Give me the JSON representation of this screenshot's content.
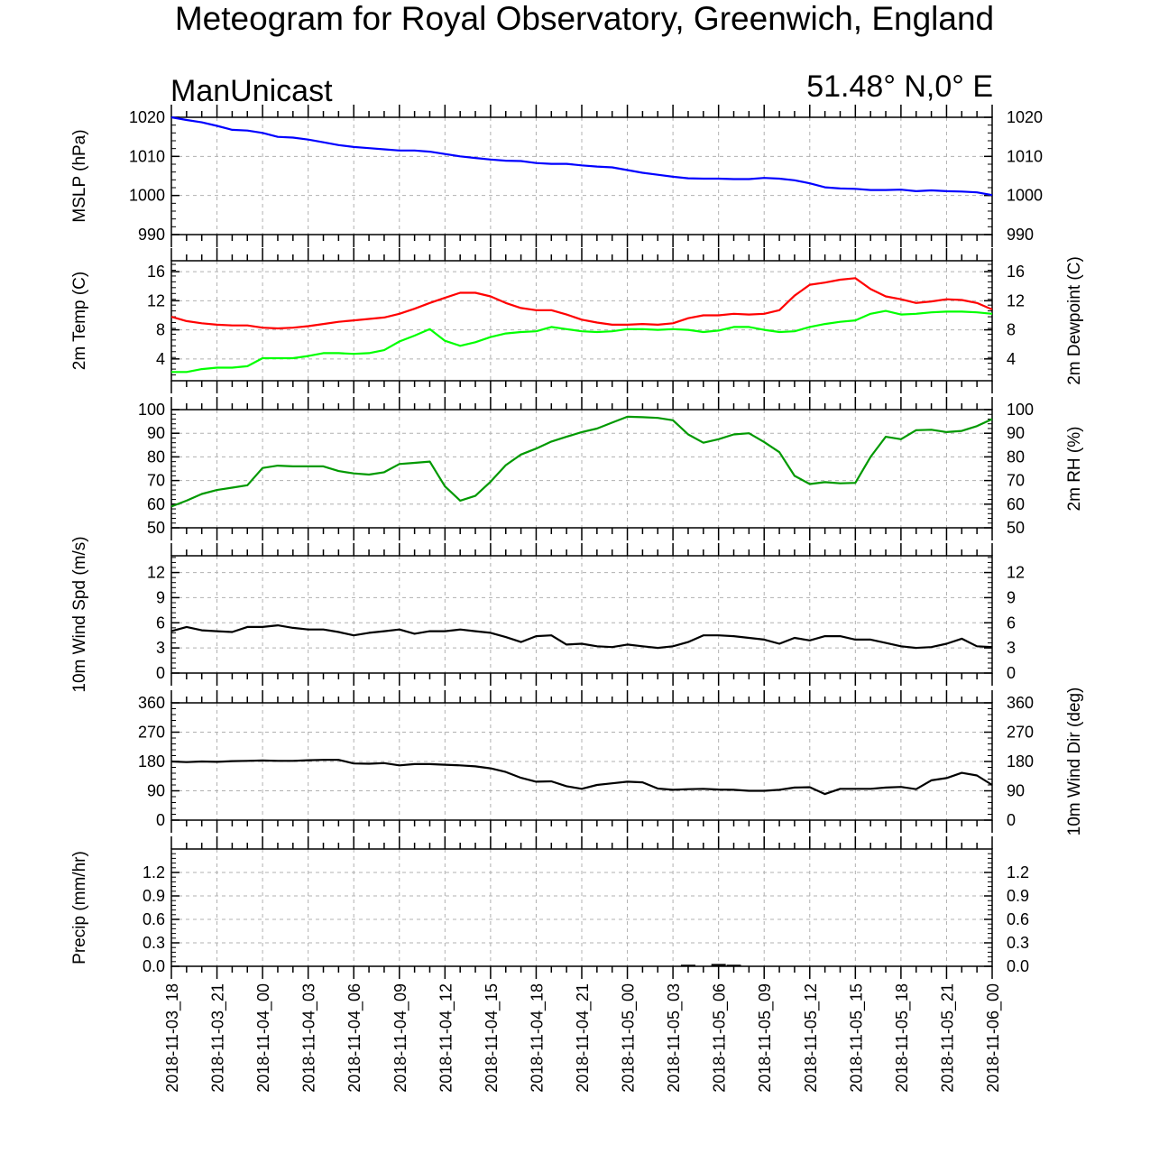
{
  "title": "Meteogram for Royal Observatory, Greenwich, England",
  "subtitle_left": "ManUnicast",
  "subtitle_right": "51.48° N,0° E",
  "chart_data": [
    {
      "type": "line",
      "ylabel": "MSLP (hPa)",
      "ylim": [
        990,
        1020
      ],
      "yticks": [
        "990",
        "1000",
        "1010",
        "1020"
      ],
      "series": [
        {
          "color": "#0000ff",
          "values": [
            1020,
            1019.3,
            1018.7,
            1017.8,
            1016.8,
            1016.6,
            1016,
            1015,
            1014.8,
            1014.3,
            1013.6,
            1012.9,
            1012.4,
            1012.1,
            1011.8,
            1011.5,
            1011.5,
            1011.2,
            1010.6,
            1010,
            1009.6,
            1009.2,
            1008.9,
            1008.8,
            1008.3,
            1008.1,
            1008.1,
            1007.7,
            1007.4,
            1007.2,
            1006.5,
            1005.8,
            1005.3,
            1004.8,
            1004.4,
            1004.3,
            1004.3,
            1004.2,
            1004.2,
            1004.5,
            1004.3,
            1003.9,
            1003.1,
            1002.1,
            1001.8,
            1001.7,
            1001.4,
            1001.4,
            1001.5,
            1001.1,
            1001.3,
            1001.1,
            1001,
            1000.8,
            1000.1
          ]
        }
      ]
    },
    {
      "type": "line",
      "ylabel": "2m Temp (C)",
      "ylabel_right": "2m Dewpoint (C)",
      "ylim": [
        1,
        17.5
      ],
      "yticks": [
        "4",
        "8",
        "12",
        "16"
      ],
      "series": [
        {
          "color": "#ff0000",
          "values": [
            9.8,
            9.2,
            8.9,
            8.7,
            8.6,
            8.6,
            8.3,
            8.2,
            8.3,
            8.5,
            8.8,
            9.1,
            9.3,
            9.5,
            9.7,
            10.2,
            10.9,
            11.7,
            12.4,
            13.1,
            13.1,
            12.6,
            11.7,
            11,
            10.7,
            10.7,
            10.1,
            9.4,
            9,
            8.7,
            8.7,
            8.8,
            8.7,
            8.9,
            9.6,
            10,
            10,
            10.2,
            10.1,
            10.2,
            10.7,
            12.7,
            14.2,
            14.5,
            14.9,
            15.1,
            13.6,
            12.6,
            12.2,
            11.7,
            11.9,
            12.2,
            12.1,
            11.7,
            10.8
          ]
        },
        {
          "color": "#00ff00",
          "values": [
            2.2,
            2.2,
            2.6,
            2.8,
            2.8,
            3.0,
            4.1,
            4.1,
            4.1,
            4.4,
            4.8,
            4.8,
            4.7,
            4.8,
            5.2,
            6.4,
            7.2,
            8.1,
            6.5,
            5.8,
            6.3,
            7.0,
            7.5,
            7.7,
            7.8,
            8.4,
            8.1,
            7.8,
            7.7,
            7.8,
            8.1,
            8.1,
            8.0,
            8.1,
            8.0,
            7.7,
            7.9,
            8.4,
            8.4,
            8.0,
            7.7,
            7.8,
            8.4,
            8.8,
            9.1,
            9.3,
            10.2,
            10.6,
            10.1,
            10.2,
            10.4,
            10.5,
            10.5,
            10.4,
            10.2
          ]
        }
      ]
    },
    {
      "type": "line",
      "ylabel_right": "2m RH (%)",
      "ylim": [
        50,
        100
      ],
      "yticks": [
        "50",
        "60",
        "70",
        "80",
        "90",
        "100"
      ],
      "series": [
        {
          "color": "#009900",
          "values": [
            59,
            61.5,
            64.3,
            66,
            67,
            68,
            75.3,
            76.3,
            76,
            76,
            76,
            74,
            73,
            72.5,
            73.5,
            77,
            77.5,
            78,
            67.5,
            61.5,
            63.5,
            69.5,
            76.5,
            81,
            83.5,
            86.5,
            88.5,
            90.5,
            92,
            94.5,
            97,
            96.8,
            96.5,
            95.5,
            89.5,
            86,
            87.5,
            89.5,
            90,
            86.3,
            82,
            72,
            68.5,
            69.3,
            68.8,
            69,
            80,
            88.5,
            87.5,
            91.3,
            91.5,
            90.5,
            91,
            93,
            96
          ]
        }
      ]
    },
    {
      "type": "line",
      "ylabel": "10m Wind Spd (m/s)",
      "ylim": [
        0,
        14
      ],
      "yticks": [
        "0",
        "3",
        "6",
        "9",
        "12"
      ],
      "series": [
        {
          "color": "#000000",
          "values": [
            5.0,
            5.5,
            5.1,
            5.0,
            4.9,
            5.5,
            5.5,
            5.7,
            5.4,
            5.2,
            5.2,
            4.9,
            4.5,
            4.8,
            5.0,
            5.2,
            4.7,
            5.0,
            5.0,
            5.2,
            5.0,
            4.8,
            4.3,
            3.7,
            4.4,
            4.5,
            3.4,
            3.5,
            3.2,
            3.1,
            3.4,
            3.2,
            3.0,
            3.2,
            3.7,
            4.5,
            4.5,
            4.4,
            4.2,
            4.0,
            3.5,
            4.2,
            3.9,
            4.4,
            4.4,
            4.0,
            4.0,
            3.6,
            3.2,
            3.0,
            3.1,
            3.5,
            4.1,
            3.2,
            3.1
          ]
        }
      ]
    },
    {
      "type": "line",
      "ylabel_right": "10m Wind Dir (deg)",
      "ylim": [
        0,
        360
      ],
      "yticks": [
        "0",
        "90",
        "180",
        "270",
        "360"
      ],
      "series": [
        {
          "color": "#000000",
          "values": [
            180,
            178,
            180,
            179,
            181,
            182,
            183,
            182,
            182,
            184,
            185,
            185,
            174,
            173,
            175,
            168,
            172,
            172,
            170,
            168,
            165,
            159,
            148,
            130,
            118,
            119,
            104,
            96,
            108,
            113,
            118,
            116,
            97,
            93,
            95,
            96,
            94,
            93,
            90,
            90,
            93,
            100,
            101,
            80,
            96,
            96,
            96,
            100,
            102,
            95,
            122,
            129,
            145,
            137,
            108
          ]
        }
      ]
    },
    {
      "type": "bar",
      "ylabel": "Precip (mm/hr)",
      "ylim": [
        0,
        1.5
      ],
      "yticks": [
        "0.0",
        "0.3",
        "0.6",
        "0.9",
        "1.2"
      ],
      "bars": [
        {
          "x": 34,
          "value": 0.02
        },
        {
          "x": 36,
          "value": 0.03
        },
        {
          "x": 37,
          "value": 0.02
        }
      ]
    }
  ],
  "x_axis": {
    "tick_labels": [
      "2018-11-03_18",
      "2018-11-03_21",
      "2018-11-04_00",
      "2018-11-04_03",
      "2018-11-04_06",
      "2018-11-04_09",
      "2018-11-04_12",
      "2018-11-04_15",
      "2018-11-04_18",
      "2018-11-04_21",
      "2018-11-05_00",
      "2018-11-05_03",
      "2018-11-05_06",
      "2018-11-05_09",
      "2018-11-05_12",
      "2018-11-05_15",
      "2018-11-05_18",
      "2018-11-05_21",
      "2018-11-06_00"
    ]
  }
}
